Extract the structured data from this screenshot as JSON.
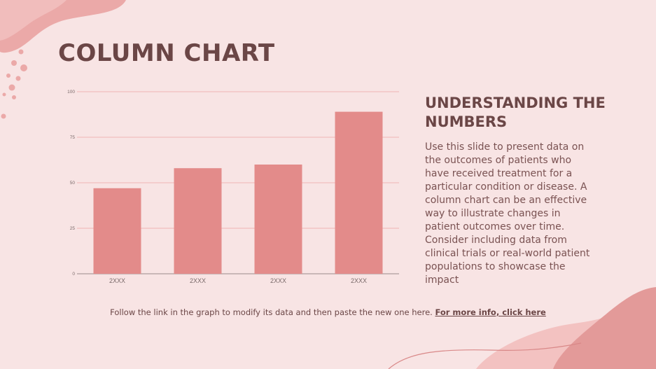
{
  "slide": {
    "title": "COLUMN CHART",
    "side_heading": "UNDERSTANDING THE NUMBERS",
    "side_body": "Use this slide to present data on the outcomes of patients who have received treatment for a particular condition or disease. A column chart can be an effective way to illustrate changes in patient outcomes over time. Consider including data from clinical trials or real-world patient populations to showcase the impact",
    "footer_text": "Follow the link in the graph to modify its data and then paste the new one here.",
    "footer_link": "For more info, click here"
  },
  "colors": {
    "background": "#f8e4e4",
    "bar": "#e38b8a",
    "text": "#6b4646",
    "blob": "#e9a3a3"
  },
  "chart_data": {
    "type": "bar",
    "categories": [
      "2XXX",
      "2XXX",
      "2XXX",
      "2XXX"
    ],
    "values": [
      47,
      58,
      60,
      89
    ],
    "yticks": [
      0,
      25,
      50,
      75,
      100
    ],
    "ylim": [
      0,
      100
    ],
    "title": "",
    "xlabel": "",
    "ylabel": "",
    "grid": true
  }
}
